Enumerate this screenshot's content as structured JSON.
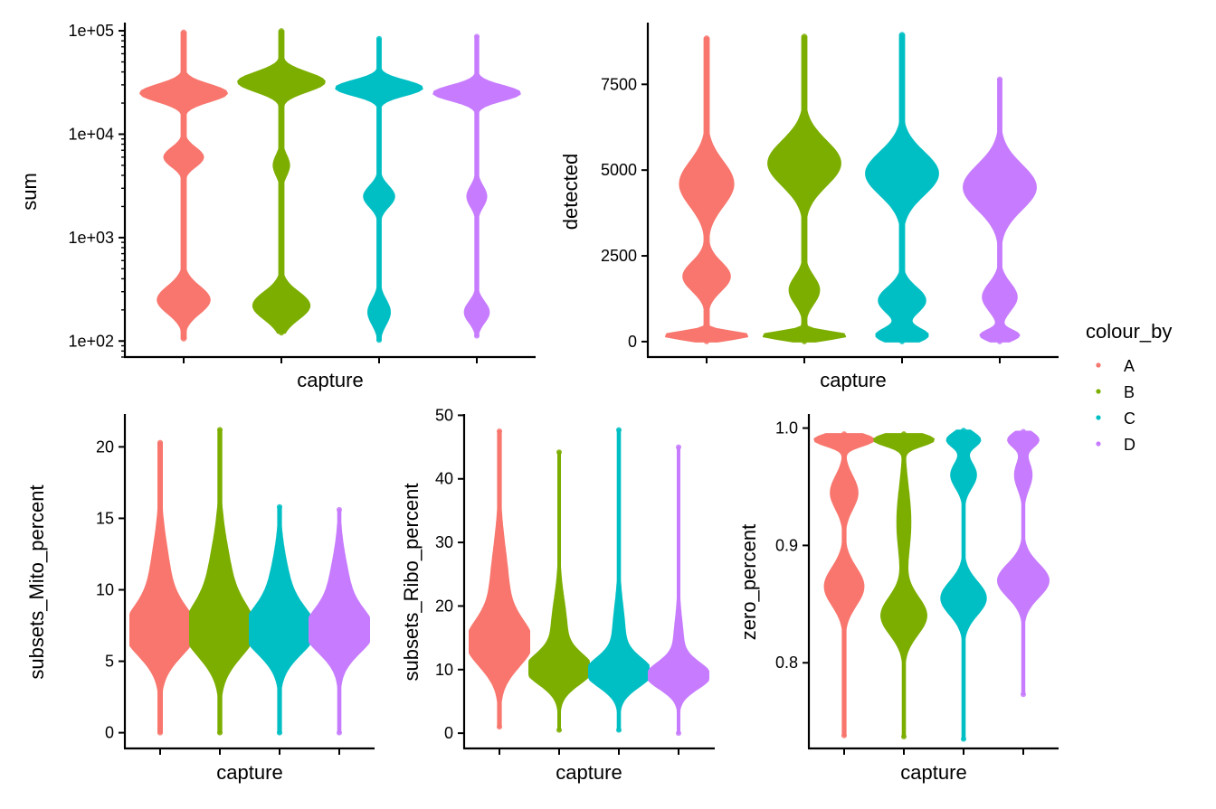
{
  "colors": {
    "A": "#F8766D",
    "B": "#7CAE00",
    "C": "#00BFC4",
    "D": "#C77CFF"
  },
  "legend": {
    "title": "colour_by",
    "items": [
      {
        "label": "A",
        "color": "#F8766D"
      },
      {
        "label": "B",
        "color": "#7CAE00"
      },
      {
        "label": "C",
        "color": "#00BFC4"
      },
      {
        "label": "D",
        "color": "#C77CFF"
      }
    ]
  },
  "chart_data": [
    {
      "type": "violin",
      "ylabel": "sum",
      "xlabel": "capture",
      "yscale": "log",
      "ylim": [
        70,
        120000
      ],
      "ticks": [
        100,
        1000,
        10000,
        100000
      ],
      "tick_labels": [
        "1e+02",
        "1e+03",
        "1e+04",
        "1e+05"
      ],
      "series": [
        {
          "name": "A",
          "min": 105,
          "max": 97000,
          "modes": [
            [
              250,
              0.6,
              0.13
            ],
            [
              6000,
              0.45,
              0.09
            ],
            [
              25000,
              1.0,
              0.08
            ]
          ],
          "floor": 0.05
        },
        {
          "name": "B",
          "min": 120,
          "max": 100000,
          "modes": [
            [
              220,
              0.65,
              0.13
            ],
            [
              5000,
              0.18,
              0.1
            ],
            [
              32000,
              1.0,
              0.09
            ]
          ],
          "floor": 0.05
        },
        {
          "name": "C",
          "min": 102,
          "max": 84000,
          "modes": [
            [
              190,
              0.25,
              0.12
            ],
            [
              2500,
              0.35,
              0.1
            ],
            [
              28000,
              1.0,
              0.07
            ]
          ],
          "floor": 0.04
        },
        {
          "name": "D",
          "min": 112,
          "max": 88000,
          "modes": [
            [
              190,
              0.28,
              0.1
            ],
            [
              2500,
              0.22,
              0.1
            ],
            [
              25000,
              1.0,
              0.07
            ]
          ],
          "floor": 0.035
        }
      ]
    },
    {
      "type": "violin",
      "ylabel": "detected",
      "xlabel": "capture",
      "yscale": "linear",
      "ylim": [
        -450,
        9300
      ],
      "ticks": [
        0,
        2500,
        5000,
        7500
      ],
      "tick_labels": [
        "0",
        "2500",
        "5000",
        "7500"
      ],
      "series": [
        {
          "name": "A",
          "min": 0,
          "max": 8850,
          "modes": [
            [
              180,
              1.0,
              110
            ],
            [
              1900,
              0.55,
              420
            ],
            [
              4600,
              0.63,
              650
            ]
          ],
          "floor": 0.05
        },
        {
          "name": "B",
          "min": 0,
          "max": 8900,
          "modes": [
            [
              180,
              1.0,
              110
            ],
            [
              1500,
              0.35,
              400
            ],
            [
              5200,
              0.85,
              650
            ]
          ],
          "floor": 0.05
        },
        {
          "name": "C",
          "min": 0,
          "max": 8950,
          "modes": [
            [
              180,
              0.6,
              200
            ],
            [
              1200,
              0.55,
              380
            ],
            [
              4900,
              0.85,
              620
            ]
          ],
          "floor": 0.05
        },
        {
          "name": "D",
          "min": 0,
          "max": 7650,
          "modes": [
            [
              180,
              0.45,
              150
            ],
            [
              1300,
              0.4,
              400
            ],
            [
              4500,
              0.85,
              650
            ]
          ],
          "floor": 0.04
        }
      ]
    },
    {
      "type": "violin",
      "ylabel": "subsets_Mito_percent",
      "xlabel": "capture",
      "yscale": "linear",
      "ylim": [
        -1.1,
        22.3
      ],
      "ticks": [
        0,
        5,
        10,
        15,
        20
      ],
      "tick_labels": [
        "0",
        "5",
        "10",
        "15",
        "20"
      ],
      "series": [
        {
          "name": "A",
          "min": 0,
          "max": 20.3,
          "modes": [
            [
              7,
              1.0,
              1.6
            ],
            [
              10,
              0.35,
              3.0
            ]
          ],
          "floor": 0.06
        },
        {
          "name": "B",
          "min": 0,
          "max": 21.2,
          "modes": [
            [
              7,
              0.95,
              1.7
            ],
            [
              10,
              0.4,
              3.0
            ]
          ],
          "floor": 0.05
        },
        {
          "name": "C",
          "min": 0,
          "max": 15.8,
          "modes": [
            [
              7,
              1.0,
              1.5
            ],
            [
              9.5,
              0.35,
              2.5
            ]
          ],
          "floor": 0.05
        },
        {
          "name": "D",
          "min": 0,
          "max": 15.6,
          "modes": [
            [
              7,
              0.95,
              1.4
            ],
            [
              9.5,
              0.35,
              2.5
            ]
          ],
          "floor": 0.04
        }
      ]
    },
    {
      "type": "violin",
      "ylabel": "subsets_Ribo_percent",
      "xlabel": "capture",
      "yscale": "linear",
      "ylim": [
        -2.4,
        50.2
      ],
      "ticks": [
        0,
        10,
        20,
        30,
        40,
        50
      ],
      "tick_labels": [
        "0",
        "10",
        "20",
        "30",
        "40",
        "50"
      ],
      "series": [
        {
          "name": "A",
          "min": 1,
          "max": 47.5,
          "modes": [
            [
              14,
              0.95,
              3.5
            ],
            [
              22,
              0.3,
              7
            ]
          ],
          "floor": 0.05
        },
        {
          "name": "B",
          "min": 0.5,
          "max": 44.2,
          "modes": [
            [
              10,
              1.0,
              2.3
            ],
            [
              16,
              0.25,
              5
            ]
          ],
          "floor": 0.03
        },
        {
          "name": "C",
          "min": 0.5,
          "max": 47.7,
          "modes": [
            [
              9.5,
              1.0,
              2.2
            ],
            [
              15,
              0.2,
              5
            ]
          ],
          "floor": 0.04
        },
        {
          "name": "D",
          "min": 0,
          "max": 45,
          "modes": [
            [
              9,
              1.0,
              2.0
            ],
            [
              14,
              0.15,
              4
            ]
          ],
          "floor": 0.03
        }
      ]
    },
    {
      "type": "violin",
      "ylabel": "zero_percent",
      "xlabel": "capture",
      "yscale": "linear",
      "ylim": [
        0.727,
        1.012
      ],
      "ticks": [
        0.8,
        0.9,
        1.0
      ],
      "tick_labels": [
        "0.8",
        "0.9",
        "1.0"
      ],
      "series": [
        {
          "name": "A",
          "min": 0.738,
          "max": 0.995,
          "modes": [
            [
              0.99,
              1.0,
              0.005
            ],
            [
              0.945,
              0.45,
              0.014
            ],
            [
              0.865,
              0.65,
              0.016
            ]
          ],
          "floor": 0.05
        },
        {
          "name": "B",
          "min": 0.737,
          "max": 0.995,
          "modes": [
            [
              0.99,
              1.0,
              0.005
            ],
            [
              0.84,
              0.75,
              0.016
            ],
            [
              0.92,
              0.22,
              0.03
            ]
          ],
          "floor": 0.04
        },
        {
          "name": "C",
          "min": 0.735,
          "max": 0.998,
          "modes": [
            [
              0.99,
              0.55,
              0.006
            ],
            [
              0.96,
              0.42,
              0.011
            ],
            [
              0.855,
              0.75,
              0.014
            ]
          ],
          "floor": 0.04
        },
        {
          "name": "D",
          "min": 0.773,
          "max": 0.997,
          "modes": [
            [
              0.99,
              0.5,
              0.006
            ],
            [
              0.96,
              0.28,
              0.012
            ],
            [
              0.87,
              0.85,
              0.014
            ]
          ],
          "floor": 0.035
        }
      ]
    }
  ]
}
